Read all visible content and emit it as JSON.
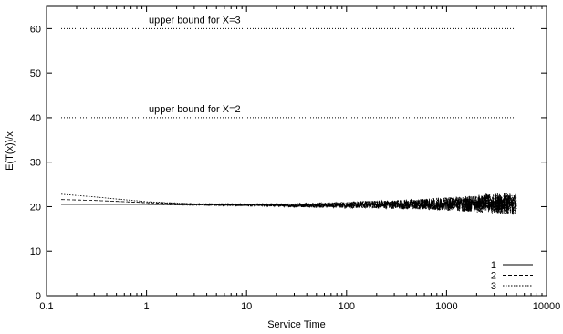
{
  "chart_data": {
    "type": "line",
    "title": "",
    "xlabel": "Service Time",
    "ylabel": "E(T(x))/x",
    "xscale": "log",
    "xlim": [
      0.1,
      10000
    ],
    "ylim": [
      0,
      65
    ],
    "x_ticks": [
      0.1,
      1,
      10,
      100,
      1000,
      10000
    ],
    "x_tick_labels": [
      "0.1",
      "1",
      "10",
      "100",
      "1000",
      "10000"
    ],
    "y_ticks": [
      0,
      10,
      20,
      30,
      40,
      50,
      60
    ],
    "y_tick_labels": [
      "0",
      "10",
      "20",
      "30",
      "40",
      "50",
      "60"
    ],
    "grid": false,
    "legend_position": "bottom-right",
    "reference_lines": [
      {
        "y": 60,
        "label": "upper bound for X=3",
        "x_range": [
          0.14,
          5000
        ]
      },
      {
        "y": 40,
        "label": "upper bound for X=2",
        "x_range": [
          0.14,
          5000
        ]
      }
    ],
    "series": [
      {
        "name": "1",
        "style": "solid",
        "x": [
          0.14,
          0.3,
          1,
          3,
          10,
          30,
          100,
          300,
          1000,
          3000,
          5000
        ],
        "y": [
          20.5,
          20.5,
          20.5,
          20.4,
          20.4,
          20.3,
          20.4,
          20.5,
          20.6,
          20.8,
          20.7
        ],
        "noise": [
          0,
          0,
          0,
          0.1,
          0.2,
          0.4,
          0.7,
          1.0,
          1.5,
          2.2,
          2.6
        ]
      },
      {
        "name": "2",
        "style": "dashed",
        "x": [
          0.14,
          0.3,
          1,
          3,
          10,
          30,
          100,
          300,
          1000,
          3000,
          5000
        ],
        "y": [
          21.6,
          21.4,
          20.9,
          20.6,
          20.4,
          20.3,
          20.4,
          20.5,
          20.6,
          20.7,
          20.6
        ],
        "noise": [
          0,
          0,
          0.05,
          0.1,
          0.2,
          0.4,
          0.7,
          1.0,
          1.5,
          2.2,
          2.6
        ]
      },
      {
        "name": "3",
        "style": "dotted",
        "x": [
          0.14,
          0.3,
          1,
          3,
          10,
          30,
          100,
          300,
          1000,
          3000,
          5000
        ],
        "y": [
          22.8,
          22.2,
          21.1,
          20.6,
          20.4,
          20.3,
          20.4,
          20.5,
          20.6,
          20.7,
          20.6
        ],
        "noise": [
          0,
          0,
          0.05,
          0.1,
          0.2,
          0.4,
          0.7,
          1.0,
          1.5,
          2.2,
          2.6
        ]
      }
    ]
  }
}
